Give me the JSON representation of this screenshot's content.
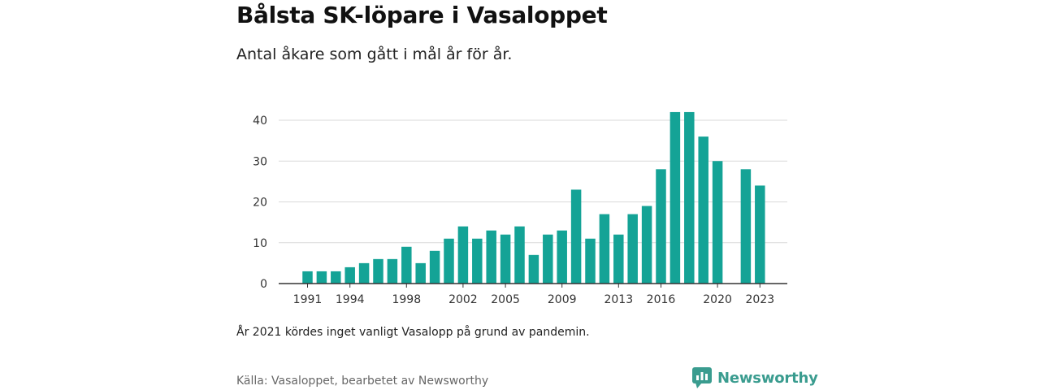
{
  "title": "Bålsta SK-löpare i Vasaloppet",
  "subtitle": "Antal åkare som gått i mål år för år.",
  "note": "År 2021 kördes inget vanligt Vasalopp på grund av pandemin.",
  "source": "Källa: Vasaloppet, bearbetet av Newsworthy",
  "brand": {
    "name": "Newsworthy",
    "icon": "newsworthy-logo-icon",
    "color": "#3a9c8f"
  },
  "chart_data": {
    "type": "bar",
    "color": "#14a396",
    "x": [
      1991,
      1992,
      1993,
      1994,
      1995,
      1996,
      1997,
      1998,
      1999,
      2000,
      2001,
      2002,
      2003,
      2004,
      2005,
      2006,
      2007,
      2008,
      2009,
      2010,
      2011,
      2012,
      2013,
      2014,
      2015,
      2016,
      2017,
      2018,
      2019,
      2020,
      2021,
      2022,
      2023
    ],
    "values": [
      3,
      3,
      3,
      4,
      5,
      6,
      6,
      9,
      5,
      8,
      11,
      14,
      11,
      13,
      12,
      14,
      7,
      12,
      13,
      23,
      11,
      17,
      12,
      17,
      19,
      28,
      42,
      42,
      36,
      30,
      null,
      28,
      24
    ],
    "x_ticks": [
      1991,
      1994,
      1998,
      2002,
      2005,
      2009,
      2013,
      2016,
      2020,
      2023
    ],
    "y_ticks": [
      0,
      10,
      20,
      30,
      40
    ],
    "ylim": [
      0,
      42
    ],
    "grid": true,
    "xlabel": "",
    "ylabel": ""
  }
}
